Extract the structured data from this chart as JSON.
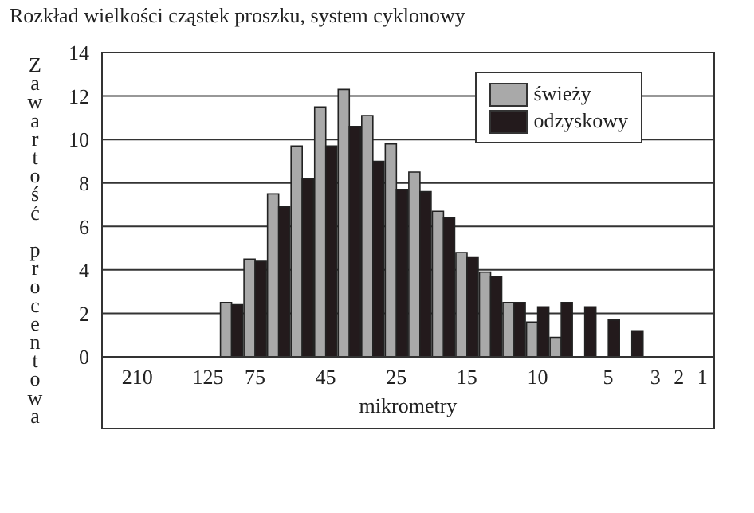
{
  "chart_data": {
    "type": "bar",
    "title": "Rozkład wielkości cząstek proszku, system cyklonowy",
    "xlabel": "mikrometry",
    "ylabel": "Zawartość procentowa",
    "categories": [
      null,
      "210",
      null,
      null,
      "125",
      null,
      "75",
      null,
      null,
      "45",
      null,
      null,
      "25",
      null,
      null,
      "15",
      null,
      null,
      "10",
      null,
      null,
      "5",
      null,
      "3",
      "2",
      "1"
    ],
    "series": [
      {
        "name": "świeży",
        "color": "#a9a9a9",
        "values": [
          null,
          null,
          null,
          null,
          null,
          2.5,
          4.5,
          7.5,
          9.7,
          11.5,
          12.3,
          11.1,
          9.8,
          8.5,
          6.7,
          4.8,
          3.9,
          2.5,
          1.6,
          0.9,
          null,
          null,
          null,
          null,
          null,
          null
        ]
      },
      {
        "name": "odzyskowy",
        "color": "#231a1c",
        "values": [
          null,
          null,
          null,
          null,
          null,
          2.4,
          4.4,
          6.9,
          8.2,
          9.7,
          10.6,
          9.0,
          7.7,
          7.6,
          6.4,
          4.6,
          3.7,
          2.5,
          2.3,
          2.5,
          2.3,
          1.7,
          1.2,
          null,
          null,
          null
        ]
      }
    ],
    "ylim": [
      0,
      14
    ],
    "yticks": [
      0,
      2,
      4,
      6,
      8,
      10,
      12,
      14
    ],
    "grid": "y",
    "legend": "top right"
  }
}
